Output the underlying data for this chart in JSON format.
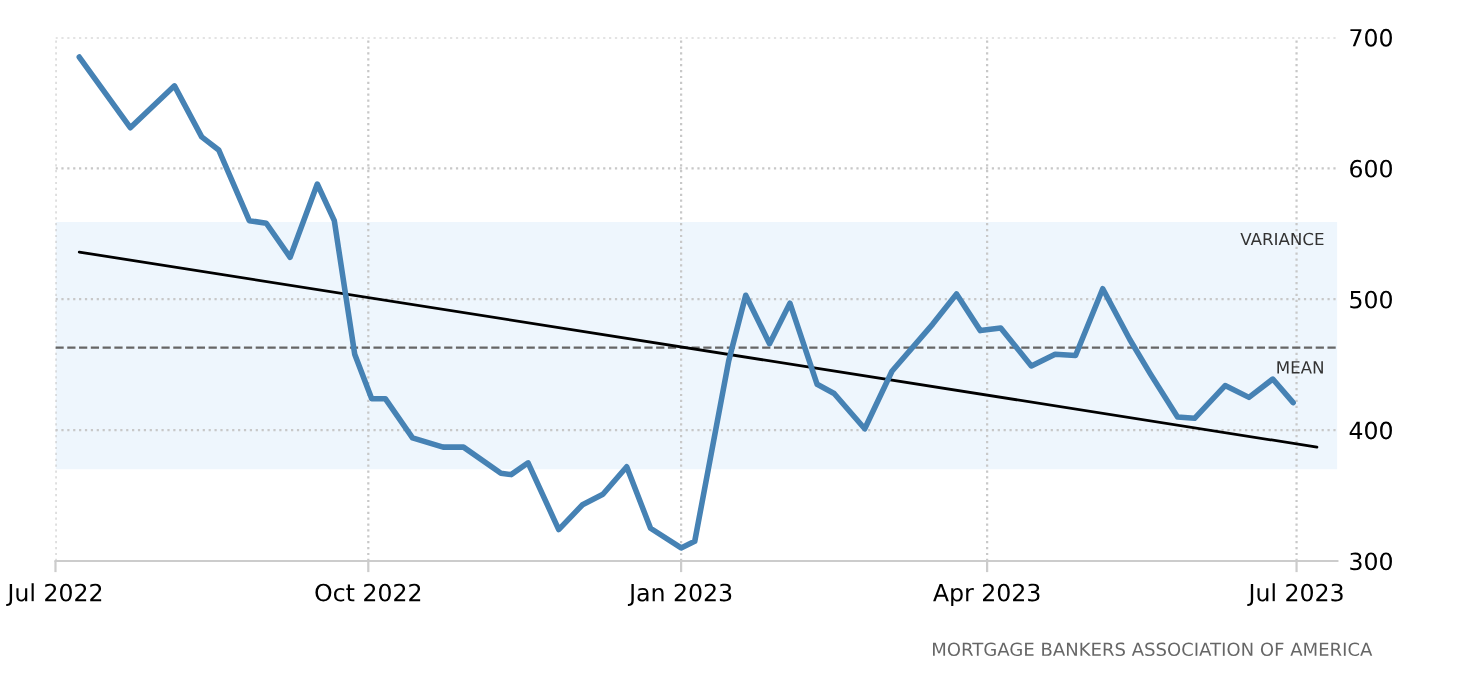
{
  "chart_data": {
    "type": "line",
    "x": [
      "2022-07-08",
      "2022-07-23",
      "2022-08-05",
      "2022-08-13",
      "2022-08-18",
      "2022-08-27",
      "2022-09-01",
      "2022-09-08",
      "2022-09-16",
      "2022-09-21",
      "2022-09-27",
      "2022-10-02",
      "2022-10-06",
      "2022-10-14",
      "2022-10-23",
      "2022-10-29",
      "2022-11-09",
      "2022-11-12",
      "2022-11-17",
      "2022-11-26",
      "2022-12-03",
      "2022-12-09",
      "2022-12-16",
      "2022-12-23",
      "2023-01-01",
      "2023-01-05",
      "2023-01-15",
      "2023-01-20",
      "2023-01-27",
      "2023-02-02",
      "2023-02-10",
      "2023-02-15",
      "2023-02-24",
      "2023-03-04",
      "2023-03-16",
      "2023-03-23",
      "2023-03-30",
      "2023-04-05",
      "2023-04-14",
      "2023-04-21",
      "2023-04-27",
      "2023-05-05",
      "2023-05-13",
      "2023-05-19",
      "2023-05-27",
      "2023-06-01",
      "2023-06-10",
      "2023-06-17",
      "2023-06-24",
      "2023-06-30"
    ],
    "series": [
      {
        "color": "#4682b4",
        "values": [
          685,
          631,
          663,
          624,
          614,
          560,
          558,
          532,
          588,
          560,
          458,
          424,
          424,
          394,
          387,
          387,
          367,
          366,
          375,
          324,
          343,
          351,
          372,
          325,
          310,
          315,
          453,
          503,
          466,
          497,
          435,
          428,
          401,
          445,
          481,
          504,
          476,
          478,
          449,
          458,
          457,
          508,
          469,
          443,
          410,
          409,
          434,
          425,
          439,
          421
        ]
      },
      {
        "color": "#000000",
        "x": [
          "2022-07-08",
          "2023-07-07"
        ],
        "values": [
          536,
          387
        ]
      }
    ],
    "xlim": [
      "2022-07-01",
      "2023-07-13"
    ],
    "xticks": [
      {
        "value": "2022-07-01",
        "label": "Jul 2022"
      },
      {
        "value": "2022-10-01",
        "label": "Oct 2022"
      },
      {
        "value": "2023-01-01",
        "label": "Jan 2023"
      },
      {
        "value": "2023-04-01",
        "label": "Apr 2023"
      },
      {
        "value": "2023-07-01",
        "label": "Jul 2023"
      }
    ],
    "ylim": [
      300,
      700
    ],
    "yticks": [
      300,
      400,
      500,
      600,
      700
    ],
    "grid": true,
    "marker": "none",
    "line_style": "solid",
    "ref_lines": [
      {
        "axis": "y",
        "value": 463,
        "label": "MEAN",
        "color": "#666666",
        "line_style": "dashed"
      }
    ],
    "bands": [
      {
        "axis": "y",
        "from": 370,
        "to": 559,
        "label": "VARIANCE",
        "color": "#eef6fd"
      }
    ],
    "annotations": [
      "MORTGAGE BANKERS ASSOCIATION OF AMERICA"
    ]
  }
}
